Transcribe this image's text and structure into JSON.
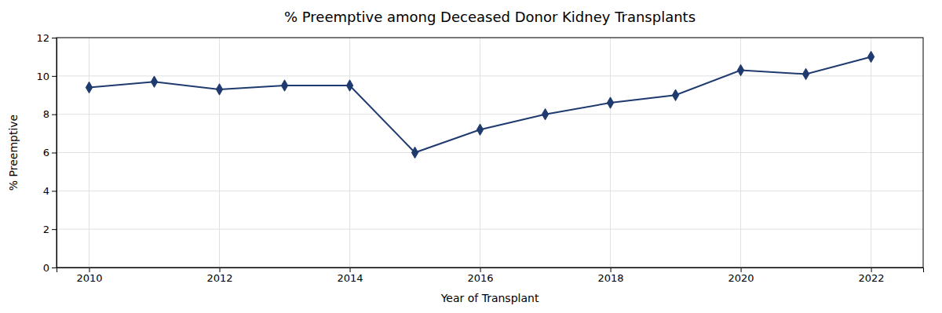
{
  "chart_data": {
    "type": "line",
    "title": "% Preemptive among Deceased Donor Kidney Transplants",
    "xlabel": "Year of Transplant",
    "ylabel": "% Preemptive",
    "x": [
      2010,
      2011,
      2012,
      2013,
      2014,
      2015,
      2016,
      2017,
      2018,
      2019,
      2020,
      2021,
      2022
    ],
    "values": [
      9.4,
      9.7,
      9.3,
      9.5,
      9.5,
      6.0,
      7.2,
      8.0,
      8.6,
      9.0,
      10.3,
      10.1,
      11.0
    ],
    "color": "#1f3a6e",
    "marker": "diamond",
    "xlim": [
      2009.5,
      2022.8
    ],
    "xticks": [
      2010,
      2012,
      2014,
      2016,
      2018,
      2020,
      2022
    ],
    "ylim": [
      0,
      12
    ],
    "yticks": [
      0,
      2,
      4,
      6,
      8,
      10,
      12
    ],
    "grid": true
  }
}
